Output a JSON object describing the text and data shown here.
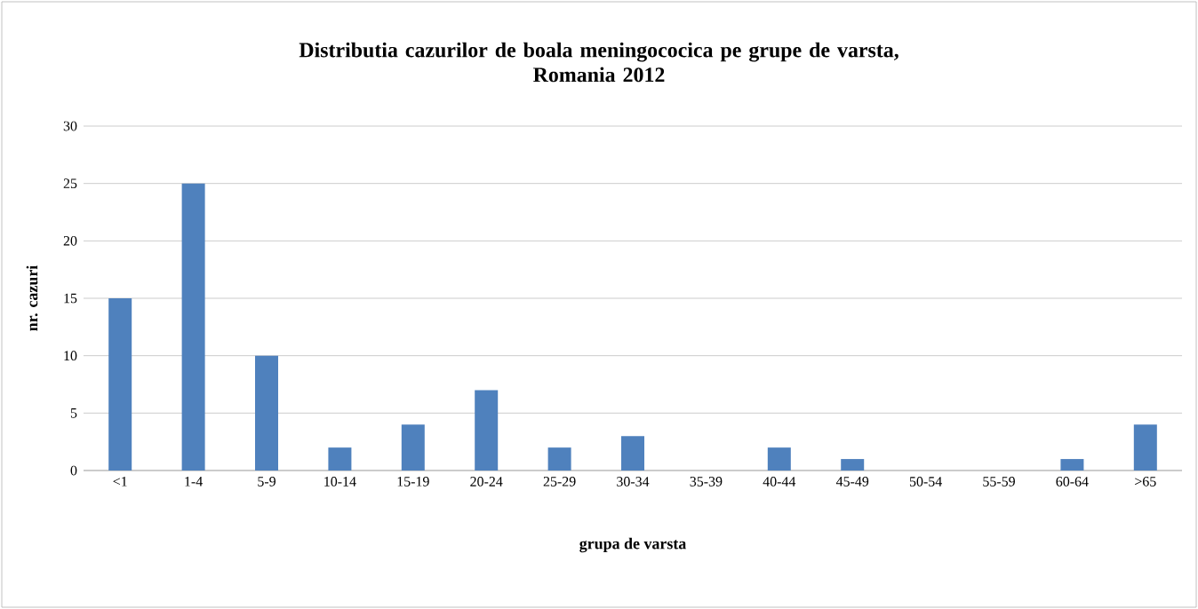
{
  "chart_data": {
    "type": "bar",
    "title": "Distributia cazurilor de boala meningococica pe grupe de varsta,\nRomania 2012",
    "xlabel": "grupa de varsta",
    "ylabel": "nr. cazuri",
    "categories": [
      "<1",
      "1-4",
      "5-9",
      "10-14",
      "15-19",
      "20-24",
      "25-29",
      "30-34",
      "35-39",
      "40-44",
      "45-49",
      "50-54",
      "55-59",
      "60-64",
      ">65"
    ],
    "values": [
      15,
      25,
      10,
      2,
      4,
      7,
      2,
      3,
      0,
      2,
      1,
      0,
      0,
      1,
      4
    ],
    "color": "#4f81bd",
    "ylim": [
      0,
      30
    ],
    "yticks": [
      0,
      5,
      10,
      15,
      20,
      25,
      30
    ],
    "grid": "y"
  }
}
